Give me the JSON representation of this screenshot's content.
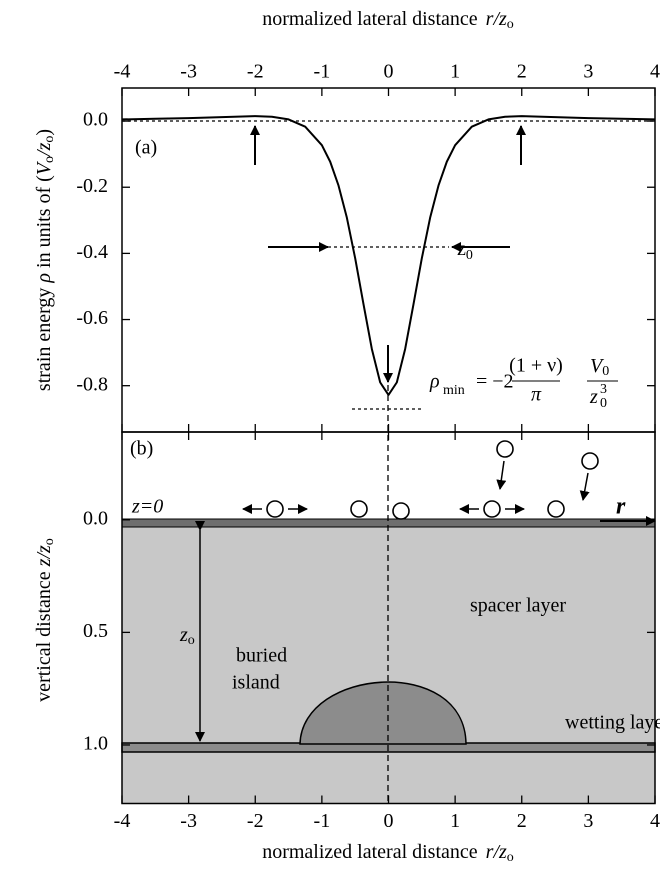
{
  "chart_data": [
    {
      "type": "line",
      "panel_label": "(a)",
      "x_axis_label": [
        "normalized lateral distance",
        "r/z",
        "o"
      ],
      "y_axis_label": [
        "strain energy ",
        "ρ",
        " in units of (",
        "V",
        "o",
        "/z",
        "o",
        ")"
      ],
      "width_label": [
        "z",
        "0"
      ],
      "formula": {
        "lhs": "ρ",
        "lhs_sub": "min",
        "coef": "= −2",
        "num1": "(1 + ν)",
        "den1": "π",
        "num2": "V",
        "num2_sub": "0",
        "den2": "z",
        "den2_sub": "0",
        "den2_sup": "3"
      },
      "x": [
        -4,
        -3.5,
        -3,
        -2.5,
        -2,
        -1.75,
        -1.5,
        -1.25,
        -1,
        -0.875,
        -0.75,
        -0.625,
        -0.5,
        -0.375,
        -0.25,
        -0.125,
        0,
        0.125,
        0.25,
        0.375,
        0.5,
        0.625,
        0.75,
        0.875,
        1,
        1.25,
        1.5,
        1.75,
        2,
        2.5,
        3,
        3.5,
        4
      ],
      "values": [
        0.005,
        0.007,
        0.009,
        0.012,
        0.015,
        0.013,
        0.005,
        -0.017,
        -0.073,
        -0.123,
        -0.195,
        -0.292,
        -0.415,
        -0.554,
        -0.689,
        -0.79,
        -0.828,
        -0.79,
        -0.689,
        -0.554,
        -0.415,
        -0.292,
        -0.195,
        -0.123,
        -0.073,
        -0.017,
        0.005,
        0.013,
        0.015,
        0.012,
        0.009,
        0.007,
        0.005
      ],
      "color": "#000000",
      "xlim": [
        -4,
        4
      ],
      "xticks": [
        -4,
        -3,
        -2,
        -1,
        0,
        1,
        2,
        3,
        4
      ],
      "ylim": [
        -0.94,
        0.1
      ],
      "yticks": [
        {
          "value": 0,
          "label": "0.0"
        },
        -0.2,
        -0.4,
        -0.6,
        -0.8
      ]
    },
    {
      "type": "cross-section",
      "panel_label": "(b)",
      "x_axis_label": [
        "normalized lateral distance",
        "r/z",
        "o"
      ],
      "y_axis_label": [
        "vertical distance  ",
        "z/z",
        "o"
      ],
      "surface_label": "z=0",
      "r_label": "r",
      "depth_label": [
        "z",
        "o"
      ],
      "spacer_label": "spacer layer",
      "island_label": [
        "buried",
        "island"
      ],
      "wetting_label": "wetting layer",
      "xlim": [
        -4,
        4
      ],
      "xticks": [
        -4,
        -3,
        -2,
        -1,
        0,
        1,
        2,
        3,
        4
      ],
      "ylim": [
        -0.39,
        1.26
      ],
      "y_inverted": true,
      "yticks": [
        {
          "value": 0,
          "label": "0.0"
        },
        0.5,
        {
          "value": 1,
          "label": "1.0"
        }
      ]
    }
  ]
}
